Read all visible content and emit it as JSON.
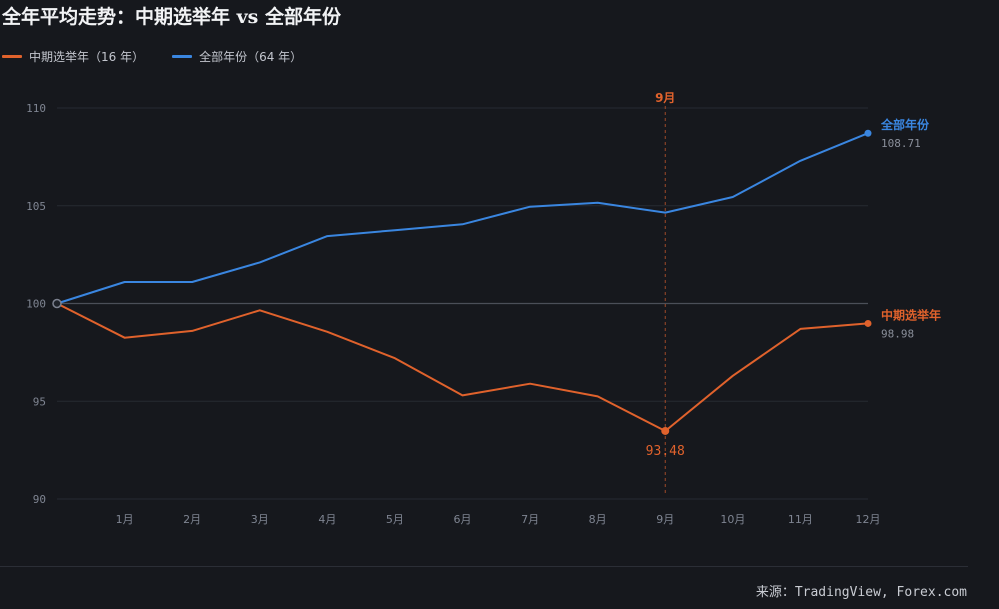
{
  "title": "全年平均走势：中期选举年 vs 全部年份",
  "legend": [
    {
      "label": "中期选举年（16 年）",
      "color": "#e0622c"
    },
    {
      "label": "全部年份（64 年）",
      "color": "#3a86e0"
    }
  ],
  "annotations": {
    "vline_label": "9月",
    "min_label": "93.48"
  },
  "end_labels": {
    "all_name": "全部年份",
    "all_value": "108.71",
    "mid_name": "中期选举年",
    "mid_value": "98.98"
  },
  "source": "来源：TradingView, Forex.com",
  "chart_data": {
    "type": "line",
    "title": "全年平均走势：中期选举年 vs 全部年份",
    "x": [
      "",
      "1月",
      "2月",
      "3月",
      "4月",
      "5月",
      "6月",
      "7月",
      "8月",
      "9月",
      "10月",
      "11月",
      "12月"
    ],
    "ylim": [
      90,
      110
    ],
    "yticks": [
      90,
      95,
      100,
      105,
      110
    ],
    "grid": true,
    "baseline": 100,
    "legend_position": "top-left",
    "vertical_marker": "9月",
    "series": [
      {
        "name": "全部年份（64 年）",
        "color": "#3a86e0",
        "values": [
          100,
          101.1,
          101.1,
          102.1,
          103.45,
          103.75,
          104.05,
          104.95,
          105.15,
          104.65,
          105.45,
          107.3,
          108.71
        ]
      },
      {
        "name": "中期选举年（16 年）",
        "color": "#e0622c",
        "values": [
          100,
          98.25,
          98.6,
          99.65,
          98.55,
          97.2,
          95.3,
          95.9,
          95.25,
          93.48,
          96.3,
          98.7,
          98.98
        ]
      }
    ]
  }
}
